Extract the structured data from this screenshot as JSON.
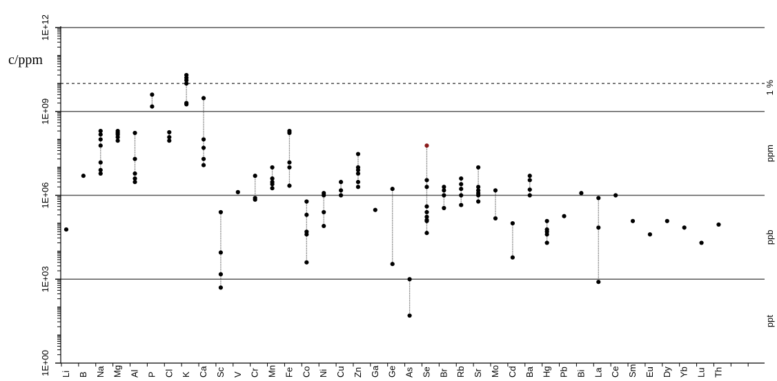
{
  "chart_data": {
    "type": "scatter",
    "ylabel": "c/ppm",
    "yscale": "log10",
    "ylim": [
      1,
      1000000000000
    ],
    "yticks": [
      {
        "value": 1,
        "label": "1E+00"
      },
      {
        "value": 1000,
        "label": "1E+03"
      },
      {
        "value": 1000000,
        "label": "1E+06"
      },
      {
        "value": 1000000000,
        "label": "1E+09"
      },
      {
        "value": 1000000000000,
        "label": "1E+12"
      }
    ],
    "reference_lines": [
      {
        "value": 1000000000000,
        "style": "solid",
        "label": ""
      },
      {
        "value": 10000000000,
        "style": "dashed",
        "label": "1 %"
      },
      {
        "value": 1000000000,
        "style": "solid",
        "label": "ppm"
      },
      {
        "value": 1000000,
        "style": "solid",
        "label": "ppb"
      },
      {
        "value": 1000,
        "style": "solid",
        "label": "ppt"
      }
    ],
    "grid": false,
    "categories": [
      "Li",
      "B",
      "Na",
      "Mg",
      "Al",
      "P",
      "Cl",
      "K",
      "Ca",
      "Sc",
      "V",
      "Cr",
      "Mn",
      "Fe",
      "Co",
      "Ni",
      "Cu",
      "Zn",
      "Ga",
      "Ge",
      "As",
      "Se",
      "Br",
      "Rb",
      "Sr",
      "Mo",
      "Cd",
      "Ba",
      "Hg",
      "Pb",
      "Bi",
      "La",
      "Ce",
      "Sm",
      "Eu",
      "Dy",
      "Yb",
      "Lu",
      "Th"
    ],
    "points": [
      [
        60000
      ],
      [
        5000000
      ],
      [
        200000000,
        150000000,
        100000000,
        60000000,
        15000000,
        8000000,
        6000000
      ],
      [
        200000000,
        170000000,
        150000000,
        120000000,
        90000000
      ],
      [
        170000000,
        20000000,
        6000000,
        4000000,
        3000000
      ],
      [
        4000000000,
        1500000000
      ],
      [
        180000000,
        120000000,
        90000000
      ],
      [
        20000000000,
        16000000000,
        13000000000,
        10000000000,
        2000000000,
        1800000000
      ],
      [
        3000000000,
        100000000,
        50000000,
        20000000,
        12000000
      ],
      [
        250000,
        9000,
        1500,
        500
      ],
      [
        1300000
      ],
      [
        5000000,
        800000,
        700000
      ],
      [
        10000000,
        4000000,
        3000000,
        2500000,
        1800000
      ],
      [
        200000000,
        170000000,
        15000000,
        10000000,
        2200000
      ],
      [
        600000,
        200000,
        50000,
        40000,
        4000
      ],
      [
        1200000,
        1000000,
        250000,
        80000
      ],
      [
        3000000,
        1500000,
        1000000
      ],
      [
        30000000,
        10000000,
        8000000,
        6000000,
        3000000,
        2000000
      ],
      [
        300000
      ],
      [
        1700000,
        3500
      ],
      [
        1000,
        50
      ],
      [
        60000000,
        3500000,
        2000000,
        400000,
        250000,
        170000,
        130000,
        120000,
        45000
      ],
      [
        2000000,
        1500000,
        1000000,
        350000
      ],
      [
        4000000,
        2500000,
        1700000,
        1000000,
        450000
      ],
      [
        10000000,
        2000000,
        1500000,
        1200000,
        1000000,
        600000
      ],
      [
        1500000,
        150000
      ],
      [
        100000,
        6000
      ],
      [
        5000000,
        3500000,
        1600000,
        1000000
      ],
      [
        120000,
        60000,
        50000,
        40000,
        20000
      ],
      [
        180000
      ],
      [
        1200000
      ],
      [
        800000,
        70000,
        800
      ],
      [
        1000000
      ],
      [
        120000
      ],
      [
        40000
      ],
      [
        120000
      ],
      [
        70000
      ],
      [
        20000
      ],
      [
        90000
      ]
    ],
    "highlighted_points": [
      {
        "category": "Se",
        "value": 60000000,
        "color": "#8b1a1a"
      }
    ]
  },
  "colors": {
    "points": "#000000",
    "connector": "#7a7a7a",
    "reference_line": "#595959",
    "highlight": "#8b1a1a"
  }
}
